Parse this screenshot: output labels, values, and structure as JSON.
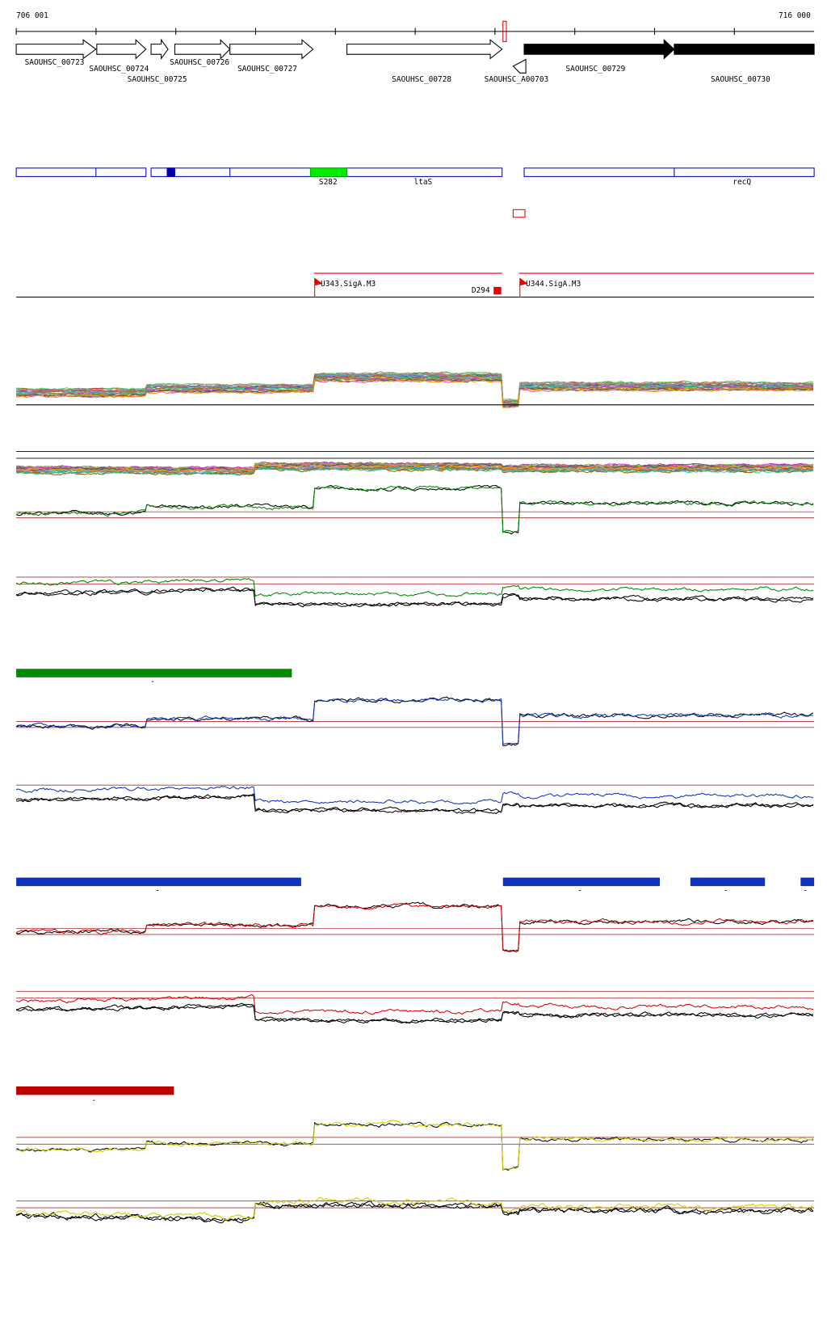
{
  "ruler": {
    "start": "706 001",
    "end": "716 000"
  },
  "genes": [
    "SAOUHSC_00723",
    "SAOUHSC_00724",
    "SAOUHSC_00725",
    "SAOUHSC_00726",
    "SAOUHSC_00727",
    "SAOUHSC_00728",
    "SAOUHSC_A00703",
    "SAOUHSC_00729",
    "SAOUHSC_00730"
  ],
  "features": [
    "S282",
    "ltaS",
    "recQ"
  ],
  "sites": [
    "U343.SigA.M3",
    "D294",
    "U344.SigA.M3"
  ],
  "segment_marks": [
    "-",
    "-",
    "-",
    "-",
    "-",
    "-"
  ]
}
